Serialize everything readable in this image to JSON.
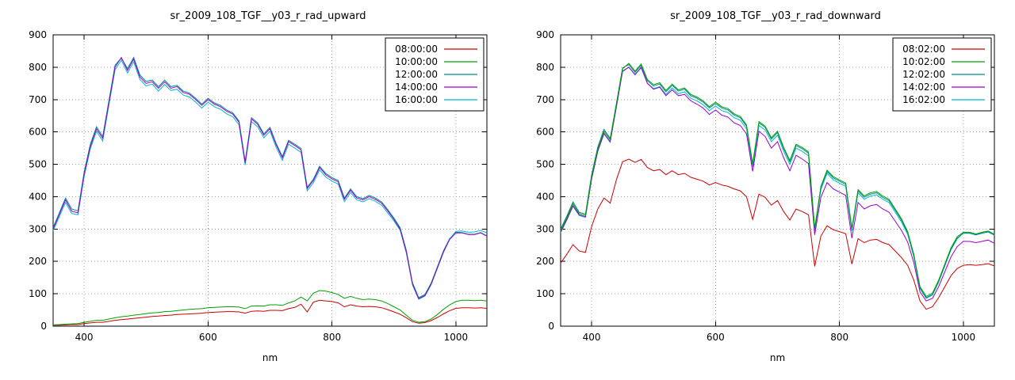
{
  "page": {
    "background": "#ffffff"
  },
  "chart_data": [
    {
      "type": "line",
      "title": "sr_2009_108_TGF__y03_r_rad_upward",
      "xlabel": "nm",
      "xlim": [
        350,
        1050
      ],
      "ylim": [
        0,
        900
      ],
      "xticks": [
        400,
        600,
        800,
        1000
      ],
      "yticks": [
        0,
        100,
        200,
        300,
        400,
        500,
        600,
        700,
        800,
        900
      ],
      "grid": true,
      "legend_position": "top-right",
      "x": [
        350,
        360,
        370,
        380,
        390,
        400,
        410,
        420,
        430,
        440,
        450,
        460,
        470,
        480,
        490,
        500,
        510,
        520,
        530,
        540,
        550,
        560,
        570,
        580,
        590,
        600,
        610,
        620,
        630,
        640,
        650,
        660,
        670,
        680,
        690,
        700,
        710,
        720,
        730,
        740,
        750,
        760,
        770,
        780,
        790,
        800,
        810,
        820,
        830,
        840,
        850,
        860,
        870,
        880,
        890,
        900,
        910,
        920,
        930,
        940,
        950,
        960,
        970,
        980,
        990,
        1000,
        1010,
        1020,
        1030,
        1040,
        1050
      ],
      "series": [
        {
          "name": "08:00:00",
          "color": "#cc0000",
          "z": 0,
          "values": [
            3,
            3,
            4,
            5,
            5,
            8,
            10,
            12,
            12,
            15,
            18,
            20,
            22,
            24,
            26,
            28,
            30,
            31,
            33,
            34,
            36,
            37,
            38,
            39,
            40,
            42,
            43,
            44,
            45,
            45,
            44,
            40,
            46,
            47,
            46,
            49,
            49,
            48,
            54,
            58,
            68,
            44,
            74,
            80,
            78,
            76,
            72,
            60,
            66,
            62,
            60,
            61,
            60,
            57,
            51,
            44,
            37,
            26,
            14,
            9,
            11,
            17,
            27,
            38,
            48,
            55,
            57,
            57,
            56,
            57,
            55
          ]
        },
        {
          "name": "10:00:00",
          "color": "#00a000",
          "z": 1,
          "values": [
            4,
            5,
            6,
            7,
            8,
            12,
            15,
            18,
            18,
            22,
            26,
            29,
            31,
            34,
            36,
            39,
            41,
            42,
            45,
            46,
            48,
            50,
            52,
            53,
            54,
            57,
            58,
            59,
            60,
            60,
            59,
            54,
            62,
            63,
            62,
            66,
            66,
            64,
            72,
            78,
            90,
            78,
            102,
            110,
            108,
            104,
            98,
            86,
            92,
            86,
            82,
            84,
            82,
            78,
            70,
            60,
            50,
            34,
            18,
            12,
            14,
            22,
            36,
            52,
            66,
            76,
            80,
            80,
            79,
            80,
            78
          ]
        },
        {
          "name": "12:00:00",
          "color": "#008c8c",
          "z": 2,
          "values": [
            305,
            350,
            396,
            362,
            356,
            476,
            562,
            616,
            586,
            696,
            806,
            828,
            796,
            830,
            776,
            756,
            760,
            740,
            760,
            740,
            744,
            726,
            720,
            704,
            686,
            704,
            690,
            682,
            668,
            659,
            634,
            509,
            644,
            628,
            594,
            614,
            564,
            524,
            574,
            562,
            549,
            429,
            454,
            494,
            472,
            459,
            450,
            396,
            424,
            400,
            394,
            404,
            396,
            384,
            360,
            334,
            304,
            234,
            134,
            88,
            98,
            133,
            183,
            233,
            271,
            290,
            289,
            284,
            284,
            289,
            279
          ]
        },
        {
          "name": "14:00:00",
          "color": "#9a00cc",
          "z": 4,
          "values": [
            300,
            345,
            390,
            355,
            350,
            470,
            555,
            610,
            580,
            690,
            800,
            830,
            790,
            825,
            770,
            750,
            755,
            735,
            755,
            735,
            740,
            722,
            716,
            700,
            682,
            700,
            686,
            678,
            664,
            655,
            630,
            505,
            640,
            624,
            590,
            610,
            560,
            520,
            570,
            558,
            545,
            425,
            450,
            490,
            468,
            455,
            446,
            392,
            420,
            396,
            390,
            400,
            392,
            380,
            356,
            330,
            300,
            230,
            130,
            85,
            95,
            130,
            180,
            230,
            268,
            288,
            288,
            283,
            283,
            288,
            278
          ]
        },
        {
          "name": "16:00:00",
          "color": "#00b8cc",
          "z": 3,
          "values": [
            295,
            338,
            382,
            348,
            344,
            462,
            548,
            602,
            572,
            682,
            792,
            822,
            782,
            816,
            762,
            742,
            748,
            726,
            747,
            728,
            732,
            714,
            708,
            692,
            674,
            692,
            678,
            670,
            656,
            647,
            622,
            498,
            632,
            616,
            582,
            602,
            552,
            512,
            562,
            550,
            537,
            418,
            443,
            483,
            461,
            448,
            439,
            385,
            413,
            390,
            384,
            394,
            386,
            374,
            350,
            325,
            296,
            226,
            127,
            83,
            93,
            128,
            178,
            228,
            270,
            293,
            294,
            290,
            291,
            296,
            288
          ]
        }
      ]
    },
    {
      "type": "line",
      "title": "sr_2009_108_TGF__y03_r_rad_downward",
      "xlabel": "nm",
      "xlim": [
        350,
        1050
      ],
      "ylim": [
        0,
        900
      ],
      "xticks": [
        400,
        600,
        800,
        1000
      ],
      "yticks": [
        0,
        100,
        200,
        300,
        400,
        500,
        600,
        700,
        800,
        900
      ],
      "grid": true,
      "legend_position": "top-right",
      "x": [
        350,
        360,
        370,
        380,
        390,
        400,
        410,
        420,
        430,
        440,
        450,
        460,
        470,
        480,
        490,
        500,
        510,
        520,
        530,
        540,
        550,
        560,
        570,
        580,
        590,
        600,
        610,
        620,
        630,
        640,
        650,
        660,
        670,
        680,
        690,
        700,
        710,
        720,
        730,
        740,
        750,
        760,
        770,
        780,
        790,
        800,
        810,
        820,
        830,
        840,
        850,
        860,
        870,
        880,
        890,
        900,
        910,
        920,
        930,
        940,
        950,
        960,
        970,
        980,
        990,
        1000,
        1010,
        1020,
        1030,
        1040,
        1050
      ],
      "series": [
        {
          "name": "08:02:00",
          "color": "#cc0000",
          "z": 0,
          "values": [
            195,
            222,
            252,
            232,
            228,
            308,
            362,
            396,
            380,
            452,
            508,
            516,
            506,
            515,
            490,
            480,
            484,
            468,
            480,
            468,
            472,
            460,
            454,
            448,
            436,
            444,
            436,
            432,
            424,
            418,
            400,
            330,
            408,
            398,
            374,
            388,
            354,
            328,
            362,
            354,
            344,
            185,
            278,
            310,
            298,
            292,
            286,
            192,
            270,
            258,
            266,
            268,
            258,
            252,
            232,
            212,
            188,
            142,
            78,
            52,
            60,
            88,
            122,
            156,
            178,
            188,
            190,
            188,
            190,
            193,
            186
          ]
        },
        {
          "name": "10:02:00",
          "color": "#00a000",
          "z": 4,
          "values": [
            295,
            335,
            378,
            348,
            342,
            462,
            548,
            602,
            576,
            684,
            795,
            812,
            788,
            810,
            762,
            746,
            752,
            728,
            748,
            730,
            736,
            716,
            708,
            696,
            678,
            692,
            678,
            672,
            656,
            648,
            622,
            502,
            632,
            618,
            582,
            602,
            552,
            512,
            562,
            552,
            538,
            302,
            432,
            482,
            462,
            452,
            442,
            302,
            422,
            402,
            412,
            416,
            402,
            392,
            362,
            332,
            292,
            222,
            122,
            92,
            102,
            142,
            192,
            242,
            276,
            290,
            290,
            285,
            290,
            294,
            284
          ]
        },
        {
          "name": "12:02:00",
          "color": "#008c8c",
          "z": 3,
          "values": [
            300,
            340,
            384,
            352,
            346,
            468,
            554,
            608,
            580,
            688,
            798,
            808,
            784,
            806,
            758,
            742,
            748,
            724,
            744,
            726,
            732,
            712,
            704,
            692,
            674,
            688,
            674,
            668,
            652,
            644,
            618,
            498,
            628,
            614,
            578,
            598,
            548,
            508,
            558,
            548,
            534,
            298,
            428,
            478,
            458,
            448,
            438,
            298,
            418,
            398,
            408,
            412,
            398,
            388,
            358,
            328,
            288,
            218,
            118,
            88,
            98,
            138,
            188,
            238,
            272,
            287,
            287,
            282,
            287,
            291,
            281
          ]
        },
        {
          "name": "14:02:00",
          "color": "#9a00cc",
          "z": 2,
          "values": [
            292,
            330,
            372,
            344,
            338,
            456,
            542,
            596,
            570,
            678,
            788,
            800,
            778,
            800,
            750,
            732,
            738,
            712,
            730,
            712,
            716,
            696,
            686,
            674,
            654,
            668,
            652,
            646,
            628,
            620,
            594,
            478,
            602,
            586,
            550,
            570,
            520,
            480,
            528,
            516,
            502,
            282,
            398,
            444,
            424,
            414,
            404,
            272,
            382,
            362,
            372,
            376,
            362,
            352,
            324,
            296,
            260,
            196,
            106,
            78,
            86,
            122,
            168,
            214,
            246,
            262,
            262,
            258,
            262,
            266,
            256
          ]
        },
        {
          "name": "16:02:00",
          "color": "#00b8cc",
          "z": 1,
          "values": [
            288,
            328,
            370,
            342,
            336,
            454,
            540,
            594,
            568,
            676,
            786,
            800,
            776,
            798,
            750,
            734,
            740,
            716,
            736,
            718,
            724,
            704,
            696,
            684,
            666,
            680,
            666,
            660,
            644,
            636,
            610,
            492,
            620,
            606,
            570,
            590,
            540,
            500,
            550,
            540,
            526,
            294,
            422,
            472,
            452,
            442,
            432,
            294,
            412,
            392,
            402,
            406,
            392,
            382,
            352,
            322,
            284,
            214,
            116,
            86,
            96,
            136,
            186,
            236,
            270,
            288,
            288,
            283,
            288,
            292,
            282
          ]
        }
      ]
    }
  ]
}
